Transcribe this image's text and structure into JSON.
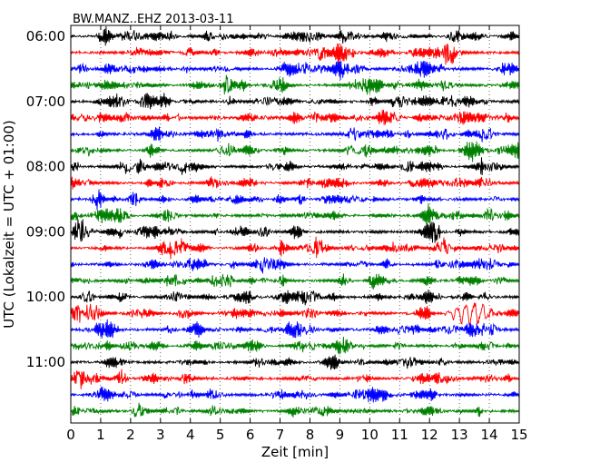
{
  "chart_data": {
    "type": "line",
    "title": "BW.MANZ..EHZ 2013-03-11",
    "xlabel": "Zeit  [min]",
    "ylabel": "UTC (Lokalzeit = UTC + 01:00)",
    "xlim": [
      0,
      15
    ],
    "x_ticks": [
      0,
      1,
      2,
      3,
      4,
      5,
      6,
      7,
      8,
      9,
      10,
      11,
      12,
      13,
      14,
      15
    ],
    "y_ticks": [
      "06:00",
      "07:00",
      "08:00",
      "09:00",
      "10:00",
      "11:00"
    ],
    "grid": "vertical dotted",
    "trace_interval_min": 15,
    "trace_colors": [
      "#000000",
      "#ff0000",
      "#0000ff",
      "#008000"
    ],
    "series": [
      {
        "start": "06:00",
        "color": "#000000"
      },
      {
        "start": "06:15",
        "color": "#ff0000"
      },
      {
        "start": "06:30",
        "color": "#0000ff"
      },
      {
        "start": "06:45",
        "color": "#008000"
      },
      {
        "start": "07:00",
        "color": "#000000"
      },
      {
        "start": "07:15",
        "color": "#ff0000"
      },
      {
        "start": "07:30",
        "color": "#0000ff"
      },
      {
        "start": "07:45",
        "color": "#008000"
      },
      {
        "start": "08:00",
        "color": "#000000"
      },
      {
        "start": "08:15",
        "color": "#ff0000"
      },
      {
        "start": "08:30",
        "color": "#0000ff"
      },
      {
        "start": "08:45",
        "color": "#008000"
      },
      {
        "start": "09:00",
        "color": "#000000"
      },
      {
        "start": "09:15",
        "color": "#ff0000"
      },
      {
        "start": "09:30",
        "color": "#0000ff"
      },
      {
        "start": "09:45",
        "color": "#008000"
      },
      {
        "start": "10:00",
        "color": "#000000"
      },
      {
        "start": "10:15",
        "color": "#ff0000",
        "event_window_min": [
          12.3,
          14.5
        ]
      },
      {
        "start": "10:30",
        "color": "#0000ff"
      },
      {
        "start": "10:45",
        "color": "#008000"
      },
      {
        "start": "11:00",
        "color": "#000000"
      },
      {
        "start": "11:15",
        "color": "#ff0000"
      },
      {
        "start": "11:30",
        "color": "#0000ff"
      },
      {
        "start": "11:45",
        "color": "#008000"
      }
    ]
  }
}
